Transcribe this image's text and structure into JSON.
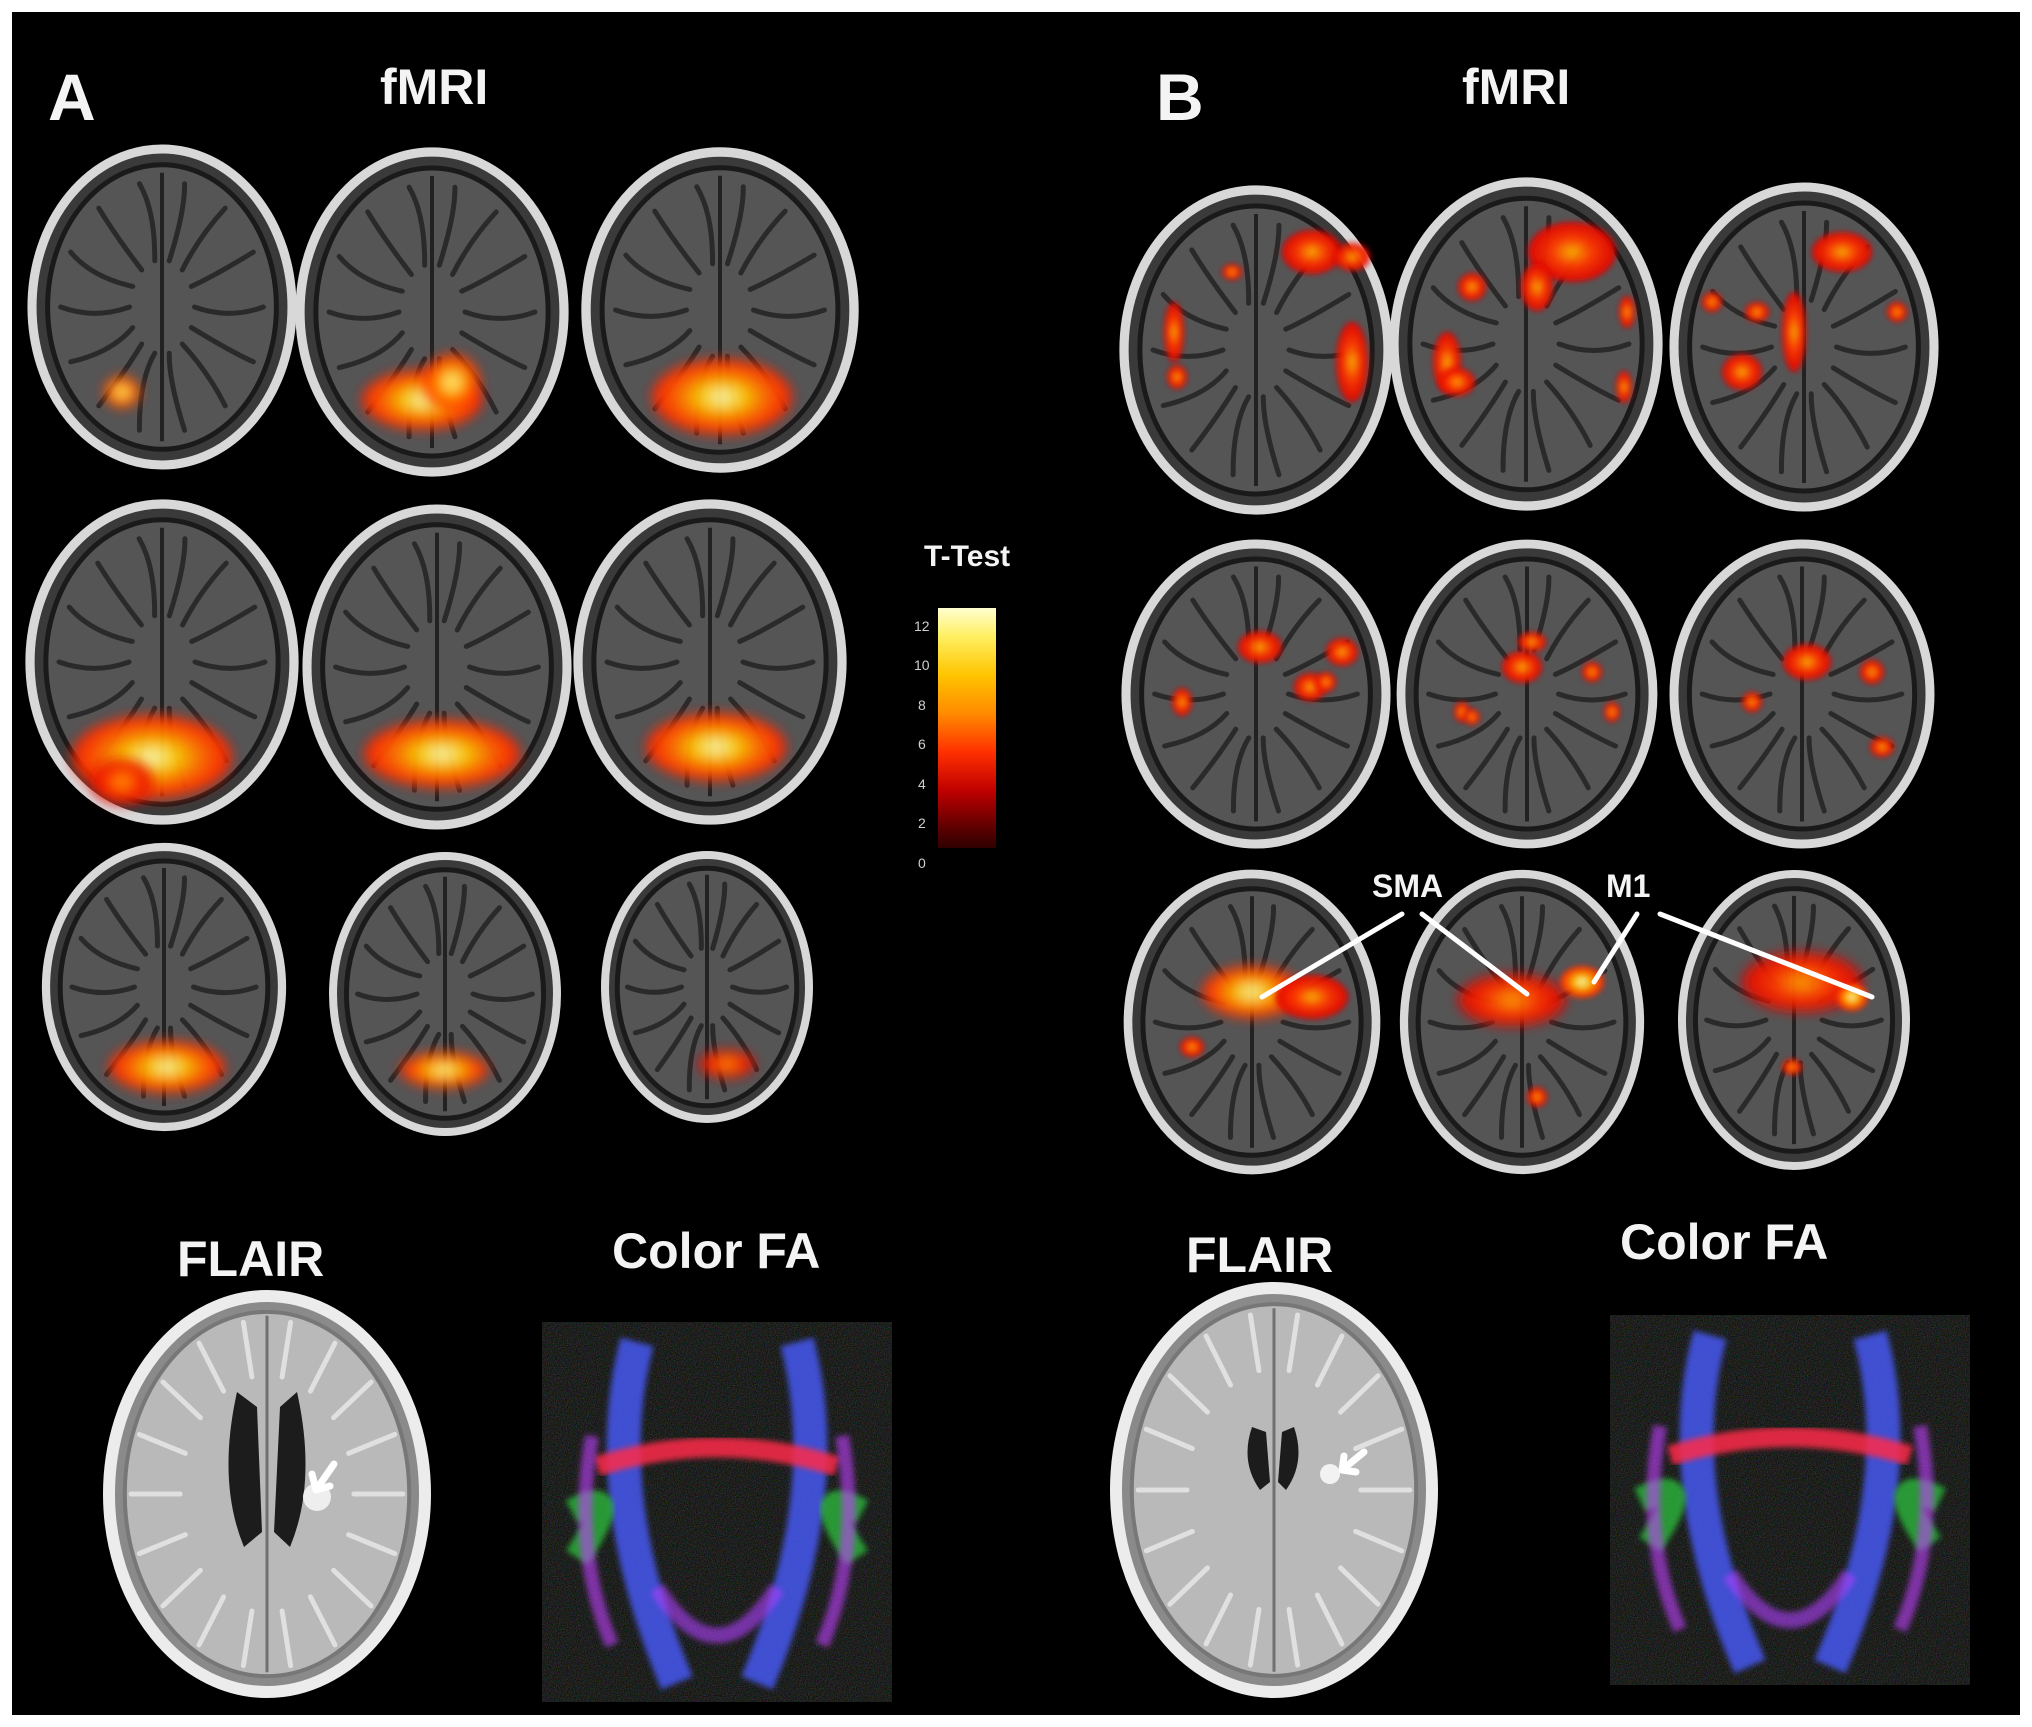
{
  "panels": [
    {
      "letter": "A",
      "modality": "fMRI",
      "structural": [
        "FLAIR",
        "Color FA"
      ]
    },
    {
      "letter": "B",
      "modality": "fMRI",
      "structural": [
        "FLAIR",
        "Color FA"
      ]
    }
  ],
  "colorbar": {
    "title": "T-Test",
    "ticks": [
      "12",
      "10",
      "8",
      "6",
      "4",
      "2",
      "0"
    ],
    "range": [
      0,
      13
    ],
    "colors": [
      "#3a0000",
      "#b00000",
      "#ff2a00",
      "#ff8c00",
      "#ffd400",
      "#ffffc8"
    ]
  },
  "annotations": {
    "sma": "SMA",
    "m1": "M1"
  }
}
